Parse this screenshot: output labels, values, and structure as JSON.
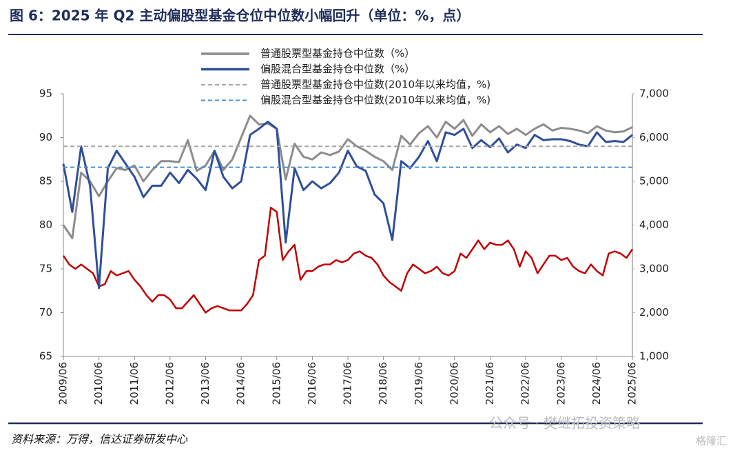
{
  "chart_data": {
    "type": "line",
    "title": "图 6：2025 年 Q2 主动偏股型基金仓位中位数小幅回升（单位：%，点）",
    "source": "资料来源：万得，信达证券研发中心",
    "watermark": "公众号 · 樊继拓投资策略",
    "watermark_logo": "格隆汇",
    "xlim": [
      "2009/06",
      "2025/06"
    ],
    "xticks": [
      "2009/06",
      "2010/06",
      "2011/06",
      "2012/06",
      "2013/06",
      "2014/06",
      "2015/06",
      "2016/06",
      "2017/06",
      "2018/06",
      "2019/06",
      "2020/06",
      "2021/06",
      "2022/06",
      "2023/06",
      "2024/06",
      "2025/06"
    ],
    "ylim": [
      65,
      95
    ],
    "yticks": [
      65,
      70,
      75,
      80,
      85,
      90,
      95
    ],
    "y2lim": [
      1000,
      7000
    ],
    "y2ticks": [
      {
        "value": 1000,
        "label": "1,000"
      },
      {
        "value": 2000,
        "label": "2,000"
      },
      {
        "value": 3000,
        "label": "3,000"
      },
      {
        "value": 4000,
        "label": "4,000"
      },
      {
        "value": 5000,
        "label": "5,000"
      },
      {
        "value": 6000,
        "label": "6,000"
      },
      {
        "value": 7000,
        "label": "7,000"
      }
    ],
    "series": [
      {
        "name": "普通股票型基金持仓中位数（%）",
        "color": "#8c8c8c",
        "x": [
          "2009/06",
          "2009/09",
          "2009/12",
          "2010/03",
          "2010/06",
          "2010/09",
          "2010/12",
          "2011/03",
          "2011/06",
          "2011/09",
          "2011/12",
          "2012/03",
          "2012/06",
          "2012/09",
          "2012/12",
          "2013/03",
          "2013/06",
          "2013/09",
          "2013/12",
          "2014/03",
          "2014/06",
          "2014/09",
          "2014/12",
          "2015/03",
          "2015/06",
          "2015/09",
          "2015/12",
          "2016/03",
          "2016/06",
          "2016/09",
          "2016/12",
          "2017/03",
          "2017/06",
          "2017/09",
          "2017/12",
          "2018/03",
          "2018/06",
          "2018/09",
          "2018/12",
          "2019/03",
          "2019/06",
          "2019/09",
          "2019/12",
          "2020/03",
          "2020/06",
          "2020/09",
          "2020/12",
          "2021/03",
          "2021/06",
          "2021/09",
          "2021/12",
          "2022/03",
          "2022/06",
          "2022/09",
          "2022/12",
          "2023/03",
          "2023/06",
          "2023/09",
          "2023/12",
          "2024/03",
          "2024/06",
          "2024/09",
          "2024/12",
          "2025/03",
          "2025/06"
        ],
        "values": [
          80,
          78.5,
          86,
          85,
          83.3,
          85,
          86.5,
          86.3,
          86.8,
          85,
          86.3,
          87.3,
          87.3,
          87.2,
          89.7,
          86.2,
          86.8,
          88.5,
          86.3,
          87.5,
          90,
          92.5,
          91.5,
          91.6,
          91,
          85.2,
          89.3,
          87.8,
          87.5,
          88.3,
          88,
          88.4,
          89.8,
          89,
          88.5,
          87.8,
          87.3,
          86.3,
          90.2,
          89.2,
          90.5,
          91.3,
          90,
          91.8,
          91,
          92,
          90.2,
          91.5,
          90.6,
          91.3,
          90.4,
          91,
          90.3,
          91,
          91.5,
          90.8,
          91.1,
          91,
          90.8,
          90.5,
          91.3,
          90.8,
          90.6,
          90.7,
          91.2
        ]
      },
      {
        "name": "偏股混合型基金持仓中位数（%）",
        "color": "#2f4f9a",
        "x": [
          "2009/06",
          "2009/09",
          "2009/12",
          "2010/03",
          "2010/06",
          "2010/09",
          "2010/12",
          "2011/03",
          "2011/06",
          "2011/09",
          "2011/12",
          "2012/03",
          "2012/06",
          "2012/09",
          "2012/12",
          "2013/03",
          "2013/06",
          "2013/09",
          "2013/12",
          "2014/03",
          "2014/06",
          "2014/09",
          "2014/12",
          "2015/03",
          "2015/06",
          "2015/09",
          "2015/12",
          "2016/03",
          "2016/06",
          "2016/09",
          "2016/12",
          "2017/03",
          "2017/06",
          "2017/09",
          "2017/12",
          "2018/03",
          "2018/06",
          "2018/09",
          "2018/12",
          "2019/03",
          "2019/06",
          "2019/09",
          "2019/12",
          "2020/03",
          "2020/06",
          "2020/09",
          "2020/12",
          "2021/03",
          "2021/06",
          "2021/09",
          "2021/12",
          "2022/03",
          "2022/06",
          "2022/09",
          "2022/12",
          "2023/03",
          "2023/06",
          "2023/09",
          "2023/12",
          "2024/03",
          "2024/06",
          "2024/09",
          "2024/12",
          "2025/03",
          "2025/06"
        ],
        "values": [
          87,
          81.5,
          89,
          84.5,
          72.8,
          86.5,
          88.5,
          87,
          85.5,
          83.2,
          84.5,
          84.5,
          86,
          84.8,
          86.3,
          85.3,
          84,
          88.5,
          85.5,
          84.2,
          85,
          90.3,
          91,
          91.8,
          91,
          78,
          86.5,
          84,
          85,
          84.2,
          84.8,
          86,
          88.5,
          86.7,
          86.2,
          83.5,
          82.5,
          78.3,
          87.3,
          86.5,
          87.8,
          89.6,
          87.3,
          90.6,
          90.3,
          91,
          88.8,
          89.7,
          88.9,
          89.9,
          88.3,
          89.2,
          88.8,
          90.3,
          89.7,
          89.8,
          89.8,
          89.6,
          89.2,
          89,
          90.6,
          89.5,
          89.6,
          89.5,
          90.3
        ]
      },
      {
        "name": "普通股票型基金持仓中位数(2010年以来均值，%)",
        "color": "#a6a6a6",
        "dashed": true,
        "value": 89
      },
      {
        "name": "偏股混合型基金持仓中位数(2010年以来均值，%)",
        "color": "#4a90d0",
        "dashed": true,
        "value": 86.6
      },
      {
        "color": "#c00000",
        "axis": "y2",
        "x": [
          "2009/06",
          "2009/08",
          "2009/10",
          "2009/12",
          "2010/02",
          "2010/04",
          "2010/06",
          "2010/08",
          "2010/10",
          "2010/12",
          "2011/02",
          "2011/04",
          "2011/06",
          "2011/08",
          "2011/10",
          "2011/12",
          "2012/02",
          "2012/04",
          "2012/06",
          "2012/08",
          "2012/10",
          "2012/12",
          "2013/02",
          "2013/04",
          "2013/06",
          "2013/08",
          "2013/10",
          "2013/12",
          "2014/02",
          "2014/04",
          "2014/06",
          "2014/08",
          "2014/10",
          "2014/12",
          "2015/02",
          "2015/04",
          "2015/06",
          "2015/08",
          "2015/10",
          "2015/12",
          "2016/02",
          "2016/04",
          "2016/06",
          "2016/08",
          "2016/10",
          "2016/12",
          "2017/02",
          "2017/04",
          "2017/06",
          "2017/08",
          "2017/10",
          "2017/12",
          "2018/02",
          "2018/04",
          "2018/06",
          "2018/08",
          "2018/10",
          "2018/12",
          "2019/02",
          "2019/04",
          "2019/06",
          "2019/08",
          "2019/10",
          "2019/12",
          "2020/02",
          "2020/04",
          "2020/06",
          "2020/08",
          "2020/10",
          "2020/12",
          "2021/02",
          "2021/04",
          "2021/06",
          "2021/08",
          "2021/10",
          "2021/12",
          "2022/02",
          "2022/04",
          "2022/06",
          "2022/08",
          "2022/10",
          "2022/12",
          "2023/02",
          "2023/04",
          "2023/06",
          "2023/08",
          "2023/10",
          "2023/12",
          "2024/02",
          "2024/04",
          "2024/06",
          "2024/08",
          "2024/10",
          "2024/12",
          "2025/02",
          "2025/04",
          "2025/06"
        ],
        "values": [
          3300,
          3100,
          3000,
          3100,
          3000,
          2900,
          2600,
          2650,
          2950,
          2850,
          2900,
          2950,
          2750,
          2600,
          2400,
          2250,
          2400,
          2400,
          2300,
          2100,
          2100,
          2250,
          2400,
          2200,
          2000,
          2100,
          2150,
          2100,
          2050,
          2050,
          2050,
          2200,
          2400,
          3200,
          3300,
          4400,
          4300,
          3200,
          3400,
          3550,
          2750,
          2950,
          2950,
          3050,
          3100,
          3100,
          3200,
          3150,
          3200,
          3350,
          3400,
          3300,
          3250,
          3100,
          2850,
          2700,
          2600,
          2500,
          2900,
          3100,
          3000,
          2900,
          2950,
          3050,
          2900,
          2850,
          2950,
          3350,
          3250,
          3450,
          3650,
          3450,
          3600,
          3550,
          3550,
          3650,
          3450,
          3050,
          3400,
          3250,
          2900,
          3100,
          3300,
          3300,
          3200,
          3250,
          3050,
          2950,
          2900,
          3100,
          2950,
          2850,
          3350,
          3400,
          3350,
          3250,
          3450
        ]
      }
    ]
  }
}
